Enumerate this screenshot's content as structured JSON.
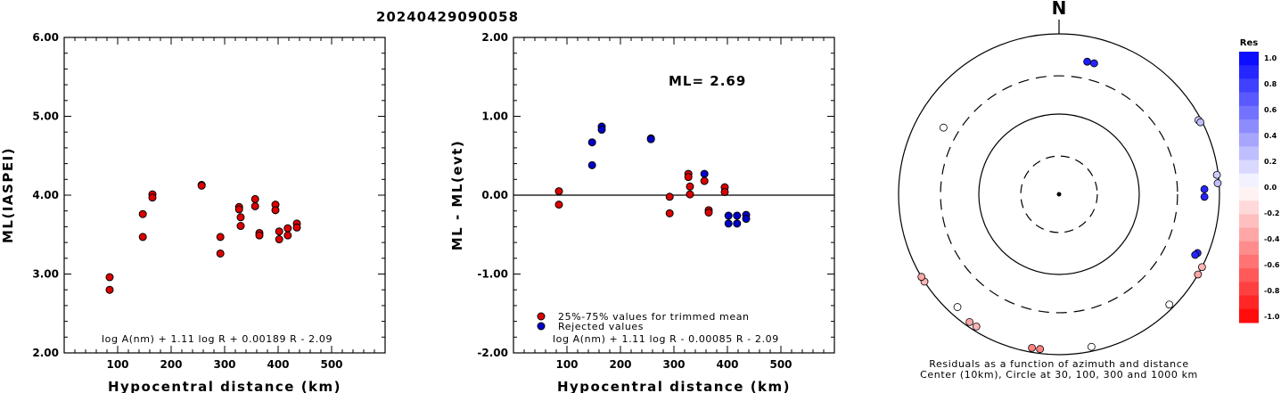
{
  "title": "20240429090058",
  "chart_data": [
    {
      "type": "scatter",
      "name": "ml-vs-distance",
      "ylabel": "ML(IASPEI)",
      "xlabel": "Hypocentral distance (km)",
      "xlim": [
        0,
        600
      ],
      "ylim": [
        2.0,
        6.0
      ],
      "xticks": [
        "100",
        "200",
        "300",
        "400",
        "500"
      ],
      "yticks": [
        "2.00",
        "3.00",
        "4.00",
        "5.00",
        "6.00"
      ],
      "formula": "log A(nm) + 1.11 log R + 0.00189 R - 2.09",
      "points": [
        [
          85,
          2.96
        ],
        [
          85,
          2.8
        ],
        [
          147,
          3.76
        ],
        [
          147,
          3.47
        ],
        [
          165,
          4.01
        ],
        [
          165,
          3.97
        ],
        [
          257,
          4.13
        ],
        [
          257,
          4.12
        ],
        [
          292,
          3.47
        ],
        [
          292,
          3.26
        ],
        [
          327,
          3.85
        ],
        [
          327,
          3.82
        ],
        [
          330,
          3.72
        ],
        [
          330,
          3.61
        ],
        [
          357,
          3.95
        ],
        [
          357,
          3.86
        ],
        [
          365,
          3.52
        ],
        [
          365,
          3.49
        ],
        [
          395,
          3.88
        ],
        [
          395,
          3.81
        ],
        [
          402,
          3.54
        ],
        [
          402,
          3.44
        ],
        [
          418,
          3.58
        ],
        [
          418,
          3.49
        ],
        [
          435,
          3.64
        ],
        [
          435,
          3.59
        ]
      ]
    },
    {
      "type": "scatter",
      "name": "residual-vs-distance",
      "ylabel": "ML - ML(evt)",
      "xlabel": "Hypocentral distance (km)",
      "xlim": [
        0,
        600
      ],
      "ylim": [
        -2.0,
        2.0
      ],
      "xticks": [
        "100",
        "200",
        "300",
        "400",
        "500"
      ],
      "yticks": [
        "-2.00",
        "-1.00",
        "0.00",
        "1.00",
        "2.00"
      ],
      "ml_label": "ML= 2.69",
      "formula": "log A(nm) + 1.11 log R - 0.00085 R - 2.09",
      "legend": [
        {
          "label": "25%-75% values for trimmed mean",
          "color": "#dd0000"
        },
        {
          "label": "Rejected values",
          "color": "#0000cc"
        }
      ],
      "accepted_points": [
        [
          85,
          0.05
        ],
        [
          85,
          -0.12
        ],
        [
          292,
          -0.02
        ],
        [
          292,
          -0.23
        ],
        [
          327,
          0.27
        ],
        [
          327,
          0.23
        ],
        [
          330,
          0.11
        ],
        [
          330,
          0.01
        ],
        [
          357,
          0.18
        ],
        [
          365,
          -0.19
        ],
        [
          365,
          -0.22
        ],
        [
          395,
          0.1
        ],
        [
          395,
          0.04
        ]
      ],
      "rejected_points": [
        [
          147,
          0.67
        ],
        [
          147,
          0.38
        ],
        [
          165,
          0.87
        ],
        [
          165,
          0.83
        ],
        [
          257,
          0.72
        ],
        [
          257,
          0.71
        ],
        [
          357,
          0.27
        ],
        [
          402,
          -0.26
        ],
        [
          402,
          -0.36
        ],
        [
          418,
          -0.26
        ],
        [
          418,
          -0.36
        ],
        [
          435,
          -0.25
        ],
        [
          435,
          -0.3
        ]
      ]
    },
    {
      "type": "scatter",
      "name": "azimuth-residuals",
      "north_label": "N",
      "caption_line1": "Residuals as a function of azimuth and distance",
      "caption_line2": "Center (10km), Circle at 30, 100, 300 and 1000 km",
      "colorbar_title": "Res",
      "colorbar_ticks": [
        "1.0",
        "0.8",
        "0.6",
        "0.4",
        "0.2",
        "0.0",
        "-0.2",
        "-0.4",
        "-0.6",
        "-0.8",
        "-1.0"
      ],
      "points": [
        {
          "az": 12,
          "dist": 490,
          "res": 0.9
        },
        {
          "az": 15,
          "dist": 490,
          "res": 0.85
        },
        {
          "az": 62,
          "dist": 930,
          "res": 0.2
        },
        {
          "az": 63,
          "dist": 950,
          "res": 0.25
        },
        {
          "az": 83,
          "dist": 960,
          "res": 0.2
        },
        {
          "az": 86,
          "dist": 960,
          "res": 0.25
        },
        {
          "az": 88,
          "dist": 650,
          "res": 0.85
        },
        {
          "az": 91,
          "dist": 650,
          "res": 0.85
        },
        {
          "az": 113,
          "dist": 750,
          "res": 0.85
        },
        {
          "az": 114,
          "dist": 720,
          "res": 0.85
        },
        {
          "az": 117,
          "dist": 1000,
          "res": -0.3
        },
        {
          "az": 120,
          "dist": 1000,
          "res": -0.35
        },
        {
          "az": 135,
          "dist": 880,
          "res": 0.0
        },
        {
          "az": 168,
          "dist": 880,
          "res": 0.0
        },
        {
          "az": 187,
          "dist": 880,
          "res": -0.5
        },
        {
          "az": 190,
          "dist": 880,
          "res": -0.5
        },
        {
          "az": 212,
          "dist": 880,
          "res": -0.3
        },
        {
          "az": 215,
          "dist": 880,
          "res": -0.35
        },
        {
          "az": 222,
          "dist": 780,
          "res": 0.0
        },
        {
          "az": 237,
          "dist": 1000,
          "res": -0.3
        },
        {
          "az": 239,
          "dist": 1000,
          "res": -0.35
        },
        {
          "az": 300,
          "dist": 460,
          "res": 0.0
        }
      ]
    }
  ]
}
